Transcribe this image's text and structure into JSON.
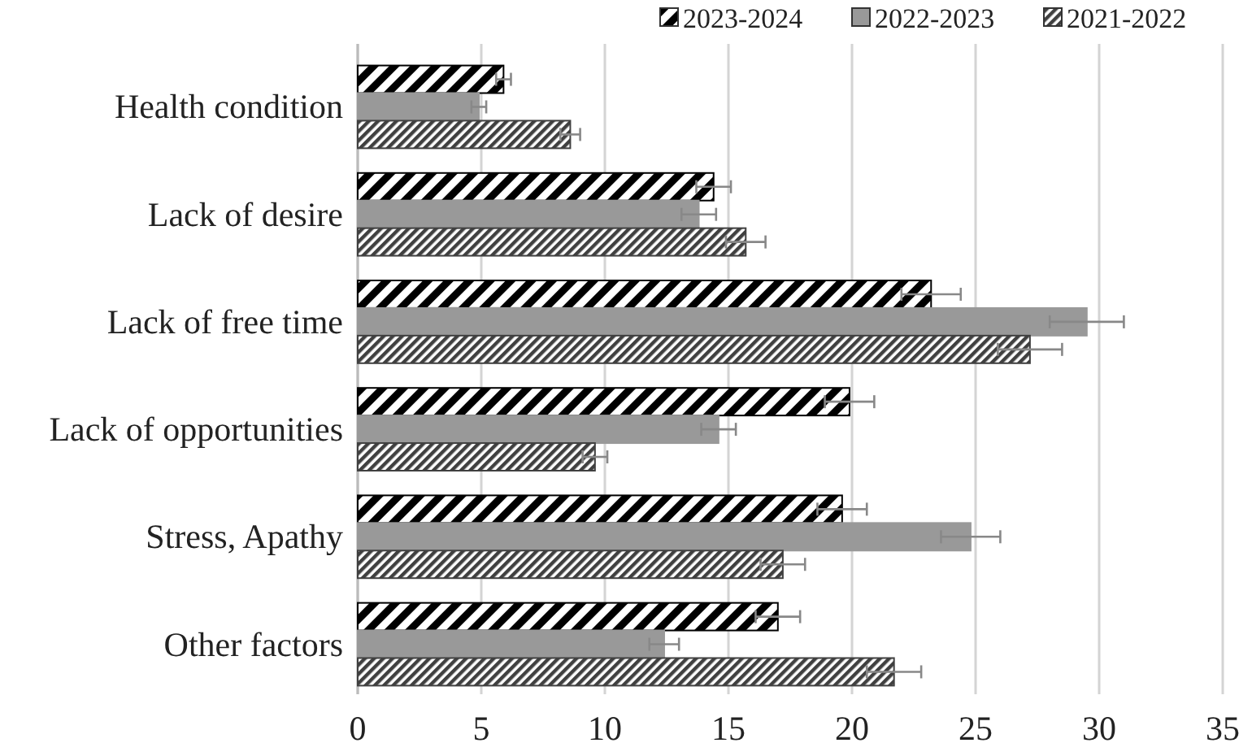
{
  "chart_data": {
    "type": "bar",
    "orientation": "horizontal",
    "categories": [
      "Health condition",
      "Lack of desire",
      "Lack of free time",
      "Lack of opportunities",
      "Stress, Apathy",
      "Other factors"
    ],
    "series": [
      {
        "name": "2023-2024",
        "color": "#000000",
        "values": [
          5.9,
          14.4,
          23.2,
          19.9,
          19.6,
          17.0
        ],
        "errors": [
          0.3,
          0.7,
          1.2,
          1.0,
          1.0,
          0.9
        ]
      },
      {
        "name": "2022-2023",
        "color": "#999999",
        "values": [
          4.9,
          13.8,
          29.5,
          14.6,
          24.8,
          12.4
        ],
        "errors": [
          0.3,
          0.7,
          1.5,
          0.7,
          1.2,
          0.6
        ]
      },
      {
        "name": "2021-2022",
        "color": "#404040",
        "values": [
          8.6,
          15.7,
          27.2,
          9.6,
          17.2,
          21.7
        ],
        "errors": [
          0.4,
          0.8,
          1.3,
          0.5,
          0.9,
          1.1
        ]
      }
    ],
    "xlim": [
      0,
      35
    ],
    "xticks": [
      0,
      5,
      10,
      15,
      20,
      25,
      30,
      35
    ],
    "grid": "x",
    "legend": "top right"
  }
}
